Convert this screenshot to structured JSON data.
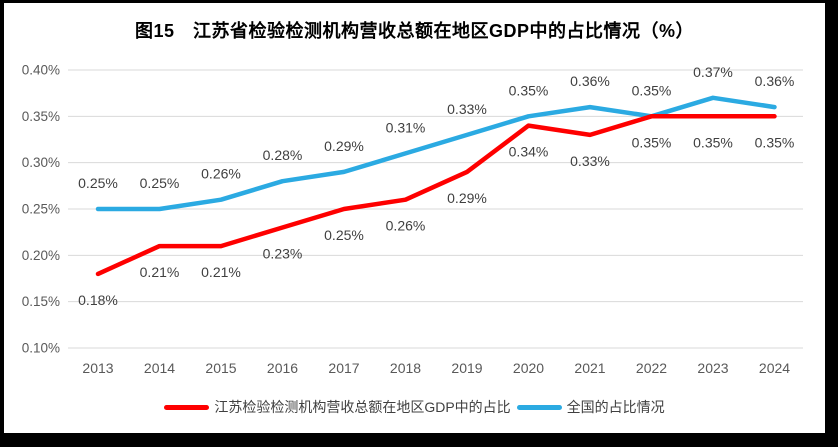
{
  "chart_data": {
    "type": "line",
    "title": "图15　江苏省检验检测机构营收总额在地区GDP中的占比情况（%）",
    "categories": [
      "2013",
      "2014",
      "2015",
      "2016",
      "2017",
      "2018",
      "2019",
      "2020",
      "2021",
      "2022",
      "2023",
      "2024"
    ],
    "series": [
      {
        "key": "jiangsu",
        "name": "江苏检验检测机构营收总额在地区GDP中的占比",
        "color": "#fe0000",
        "values": [
          0.18,
          0.21,
          0.21,
          0.23,
          0.25,
          0.26,
          0.29,
          0.34,
          0.33,
          0.35,
          0.35,
          0.35
        ],
        "point_labels": [
          "0.18%",
          "0.21%",
          "0.21%",
          "0.23%",
          "0.25%",
          "0.26%",
          "0.29%",
          "0.34%",
          "0.33%",
          "0.35%",
          "0.35%",
          "0.35%"
        ],
        "label_position": "below"
      },
      {
        "key": "national",
        "name": "全国的占比情况",
        "color": "#2baae2",
        "values": [
          0.25,
          0.25,
          0.26,
          0.28,
          0.29,
          0.31,
          0.33,
          0.35,
          0.36,
          0.35,
          0.37,
          0.36
        ],
        "point_labels": [
          "0.25%",
          "0.25%",
          "0.26%",
          "0.28%",
          "0.29%",
          "0.31%",
          "0.33%",
          "0.35%",
          "0.36%",
          "0.35%",
          "0.37%",
          "0.36%"
        ],
        "label_position": "above"
      }
    ],
    "y_ticks": [
      {
        "label": "0.40%",
        "value": 0.4
      },
      {
        "label": "0.35%",
        "value": 0.35
      },
      {
        "label": "0.30%",
        "value": 0.3
      },
      {
        "label": "0.25%",
        "value": 0.25
      },
      {
        "label": "0.20%",
        "value": 0.2
      },
      {
        "label": "0.15%",
        "value": 0.15
      },
      {
        "label": "0.10%",
        "value": 0.1
      }
    ],
    "ylim": [
      0.1,
      0.4
    ],
    "xlabel": "",
    "ylabel": "",
    "grid": "horizontal",
    "grid_color": "#d9d9d9",
    "legend_position": "bottom"
  }
}
